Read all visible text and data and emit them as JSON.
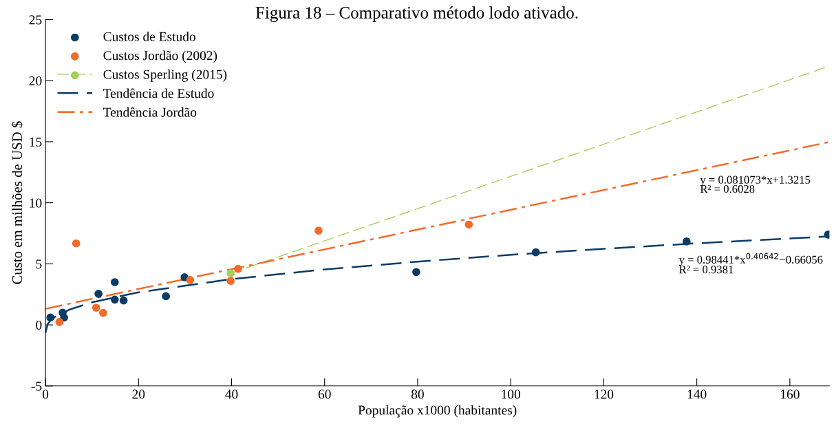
{
  "chart_data": {
    "type": "scatter",
    "title": "Figura 18 – Comparativo método lodo ativado.",
    "xlabel": "População x1000 (habitantes)",
    "ylabel": "Custo em milhões de USD $",
    "xlim": [
      0,
      168.5
    ],
    "xticks": [
      0,
      20,
      40,
      60,
      80,
      100,
      120,
      140,
      160
    ],
    "ylim": [
      -5,
      25
    ],
    "yticks": [
      -5,
      0,
      5,
      10,
      15,
      20,
      25
    ],
    "grid": false,
    "legend": "top left",
    "marker": "circle",
    "series": [
      {
        "name": "Custos de Estudo",
        "color": "#0b3c66",
        "x": [
          1.07,
          3.7,
          4.0,
          11.4,
          14.9,
          14.9,
          16.8,
          25.9,
          29.9,
          79.7,
          105.4,
          137.8,
          168.2
        ],
        "values": [
          0.6,
          1.0,
          0.6,
          2.55,
          3.5,
          2.07,
          2.0,
          2.35,
          3.9,
          4.33,
          5.94,
          6.83,
          7.39
        ]
      },
      {
        "name": "Custos Jordão (2002)",
        "color": "#f26b2a",
        "x": [
          3.0,
          6.6,
          10.9,
          12.4,
          31.1,
          39.8,
          41.4,
          58.7,
          91.0
        ],
        "values": [
          0.24,
          6.67,
          1.41,
          0.98,
          3.67,
          3.61,
          4.59,
          7.72,
          8.22
        ]
      },
      {
        "name": "Custos Sperling (2015)",
        "color": "#a3d15a",
        "x": [
          39.8
        ],
        "values": [
          4.22
        ]
      },
      {
        "type": "line",
        "color": "#a3d15a",
        "line_style": "dashed",
        "marker": "none",
        "x": [
          39.8,
          168.5
        ],
        "values": [
          4.22,
          21.2
        ]
      },
      {
        "name": "Tendência de Estudo",
        "type": "line",
        "color": "#0b3c66",
        "line_style": "dashed",
        "marker": "none",
        "x": [
          0,
          0.5,
          1,
          2,
          5,
          10,
          20,
          40,
          60,
          80,
          100,
          120,
          140,
          168.5
        ],
        "values": [
          -0.66,
          0.08,
          0.32,
          0.64,
          1.23,
          1.85,
          2.67,
          3.75,
          4.54,
          5.18,
          5.74,
          6.23,
          6.68,
          7.25
        ]
      },
      {
        "name": "Tendência Jordão",
        "type": "line",
        "color": "#f26b2a",
        "line_style": "dashdot",
        "marker": "none",
        "x": [
          0,
          168.5
        ],
        "values": [
          1.32,
          14.98
        ]
      }
    ],
    "annotations": [
      "y = 0.081073*x+1.3215",
      "R² = 0.6028",
      "y = 0.98441*x$^{0.40642}$−0.66056",
      "R² = 0.9381"
    ]
  }
}
